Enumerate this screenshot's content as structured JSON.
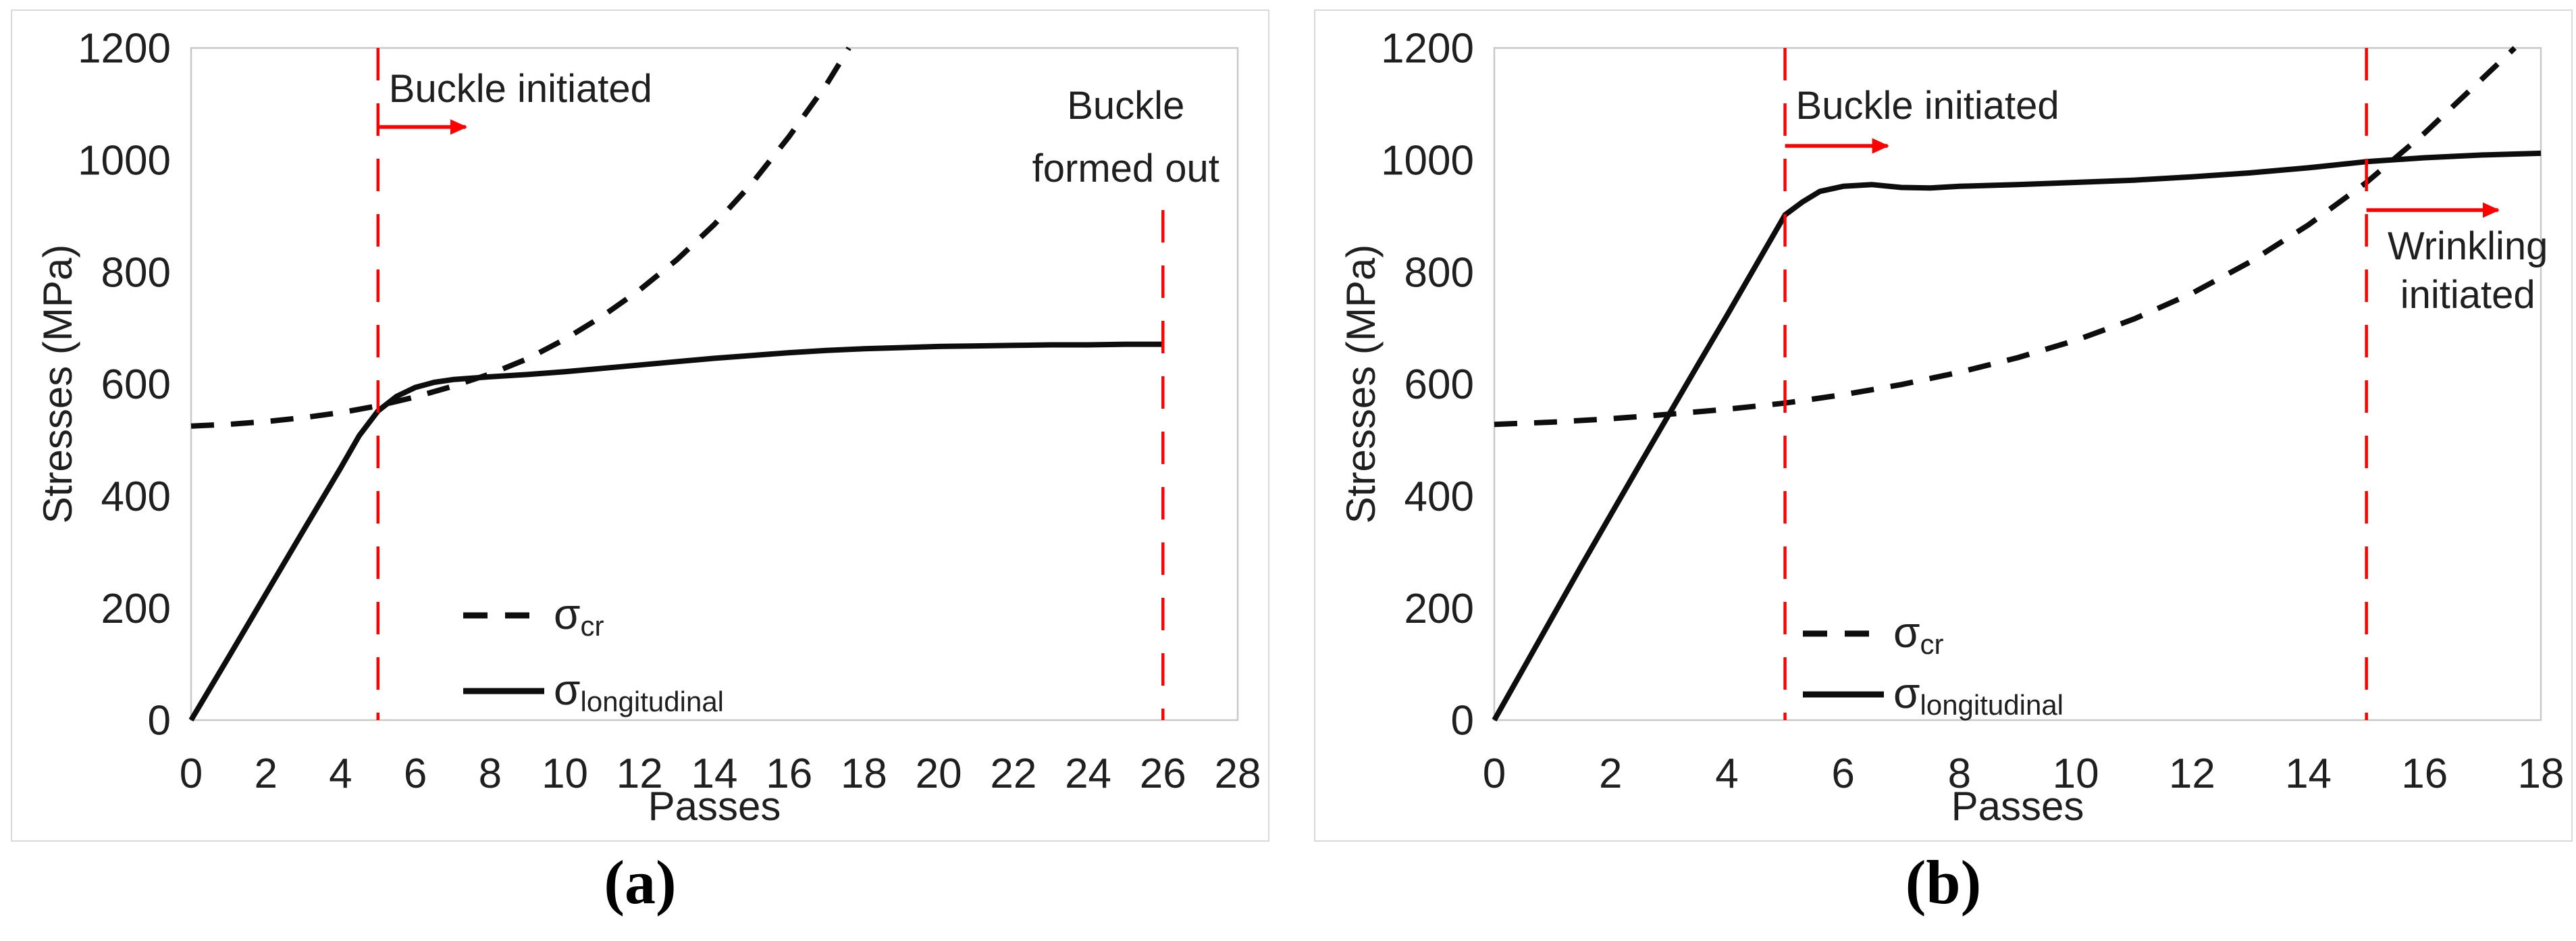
{
  "figure": {
    "background": "#ffffff",
    "curve_color": "#0d0d0d",
    "accent_red": "#ff0000",
    "panel_border_color": "#d9d9d9",
    "axis_line_color": "#c8c8c8",
    "text_color": "#1f1f1f"
  },
  "chart_data": [
    {
      "type": "line",
      "panel": "a",
      "caption": "(a)",
      "xlabel": "Passes",
      "ylabel": "Stresses (MPa)",
      "xlim": [
        0,
        28
      ],
      "ylim": [
        0,
        1200
      ],
      "xticks": [
        0,
        2,
        4,
        6,
        8,
        10,
        12,
        14,
        16,
        18,
        20,
        22,
        24,
        26,
        28
      ],
      "yticks": [
        0,
        200,
        400,
        600,
        800,
        1000,
        1200
      ],
      "grid": false,
      "legend_position": "inside-bottom-center",
      "legend": [
        {
          "symbol": "σ",
          "sub": "cr",
          "style": "dashed"
        },
        {
          "symbol": "σ",
          "sub": "longitudinal",
          "style": "solid"
        }
      ],
      "series": [
        {
          "name": "sigma_cr",
          "style": "dashed",
          "points": [
            [
              0,
              525
            ],
            [
              1,
              528
            ],
            [
              2,
              533
            ],
            [
              3,
              540
            ],
            [
              4,
              549
            ],
            [
              5,
              561
            ],
            [
              6,
              577
            ],
            [
              7,
              596
            ],
            [
              8,
              618
            ],
            [
              9,
              645
            ],
            [
              10,
              680
            ],
            [
              11,
              721
            ],
            [
              12,
              768
            ],
            [
              13,
              822
            ],
            [
              14,
              885
            ],
            [
              15,
              958
            ],
            [
              16,
              1042
            ],
            [
              17,
              1135
            ],
            [
              17.6,
              1200
            ]
          ]
        },
        {
          "name": "sigma_longitudinal",
          "style": "solid",
          "points": [
            [
              0,
              0
            ],
            [
              1,
              112
            ],
            [
              2,
              225
            ],
            [
              3,
              338
            ],
            [
              4,
              450
            ],
            [
              4.5,
              508
            ],
            [
              5,
              552
            ],
            [
              5.5,
              578
            ],
            [
              6,
              594
            ],
            [
              6.5,
              603
            ],
            [
              7,
              608
            ],
            [
              8,
              613
            ],
            [
              9,
              617
            ],
            [
              10,
              622
            ],
            [
              11,
              628
            ],
            [
              12,
              634
            ],
            [
              13,
              640
            ],
            [
              14,
              646
            ],
            [
              15,
              651
            ],
            [
              16,
              656
            ],
            [
              17,
              660
            ],
            [
              18,
              663
            ],
            [
              19,
              665
            ],
            [
              20,
              667
            ],
            [
              21,
              668
            ],
            [
              22,
              669
            ],
            [
              23,
              670
            ],
            [
              24,
              670
            ],
            [
              25,
              671
            ],
            [
              26,
              671
            ]
          ]
        }
      ],
      "annotations": [
        {
          "x_pass": 5,
          "lines": [
            "Buckle initiated"
          ],
          "arrow": true
        },
        {
          "x_pass": 26,
          "lines": [
            "Buckle",
            "formed out"
          ],
          "arrow": false
        }
      ]
    },
    {
      "type": "line",
      "panel": "b",
      "caption": "(b)",
      "xlabel": "Passes",
      "ylabel": "Stresses (MPa)",
      "xlim": [
        0,
        18
      ],
      "ylim": [
        0,
        1200
      ],
      "xticks": [
        0,
        2,
        4,
        6,
        8,
        10,
        12,
        14,
        16,
        18
      ],
      "yticks": [
        0,
        200,
        400,
        600,
        800,
        1000,
        1200
      ],
      "grid": false,
      "legend_position": "inside-bottom-center",
      "legend": [
        {
          "symbol": "σ",
          "sub": "cr",
          "style": "dashed"
        },
        {
          "symbol": "σ",
          "sub": "longitudinal",
          "style": "solid"
        }
      ],
      "series": [
        {
          "name": "sigma_cr",
          "style": "dashed",
          "points": [
            [
              0,
              528
            ],
            [
              1,
              532
            ],
            [
              2,
              538
            ],
            [
              3,
              546
            ],
            [
              4,
              555
            ],
            [
              5,
              566
            ],
            [
              6,
              581
            ],
            [
              7,
              599
            ],
            [
              8,
              621
            ],
            [
              9,
              647
            ],
            [
              10,
              678
            ],
            [
              11,
              716
            ],
            [
              12,
              762
            ],
            [
              13,
              818
            ],
            [
              14,
              884
            ],
            [
              15,
              960
            ],
            [
              16,
              1048
            ],
            [
              17,
              1146
            ],
            [
              17.55,
              1200
            ]
          ]
        },
        {
          "name": "sigma_longitudinal",
          "style": "solid",
          "points": [
            [
              0,
              0
            ],
            [
              0.5,
              92
            ],
            [
              1,
              184
            ],
            [
              1.5,
              276
            ],
            [
              2,
              366
            ],
            [
              2.5,
              456
            ],
            [
              3,
              545
            ],
            [
              3.5,
              634
            ],
            [
              4,
              722
            ],
            [
              4.5,
              812
            ],
            [
              5,
              902
            ],
            [
              5.3,
              925
            ],
            [
              5.6,
              944
            ],
            [
              6,
              953
            ],
            [
              6.5,
              956
            ],
            [
              7,
              951
            ],
            [
              7.5,
              950
            ],
            [
              8,
              953
            ],
            [
              9,
              956
            ],
            [
              10,
              960
            ],
            [
              11,
              964
            ],
            [
              12,
              970
            ],
            [
              13,
              977
            ],
            [
              14,
              986
            ],
            [
              15,
              997
            ],
            [
              16,
              1004
            ],
            [
              17,
              1009
            ],
            [
              18,
              1012
            ]
          ]
        }
      ],
      "annotations": [
        {
          "x_pass": 5,
          "lines": [
            "Buckle initiated"
          ],
          "arrow": true
        },
        {
          "x_pass": 15,
          "lines": [
            "Wrinkling",
            "initiated"
          ],
          "arrow": true
        }
      ]
    }
  ]
}
